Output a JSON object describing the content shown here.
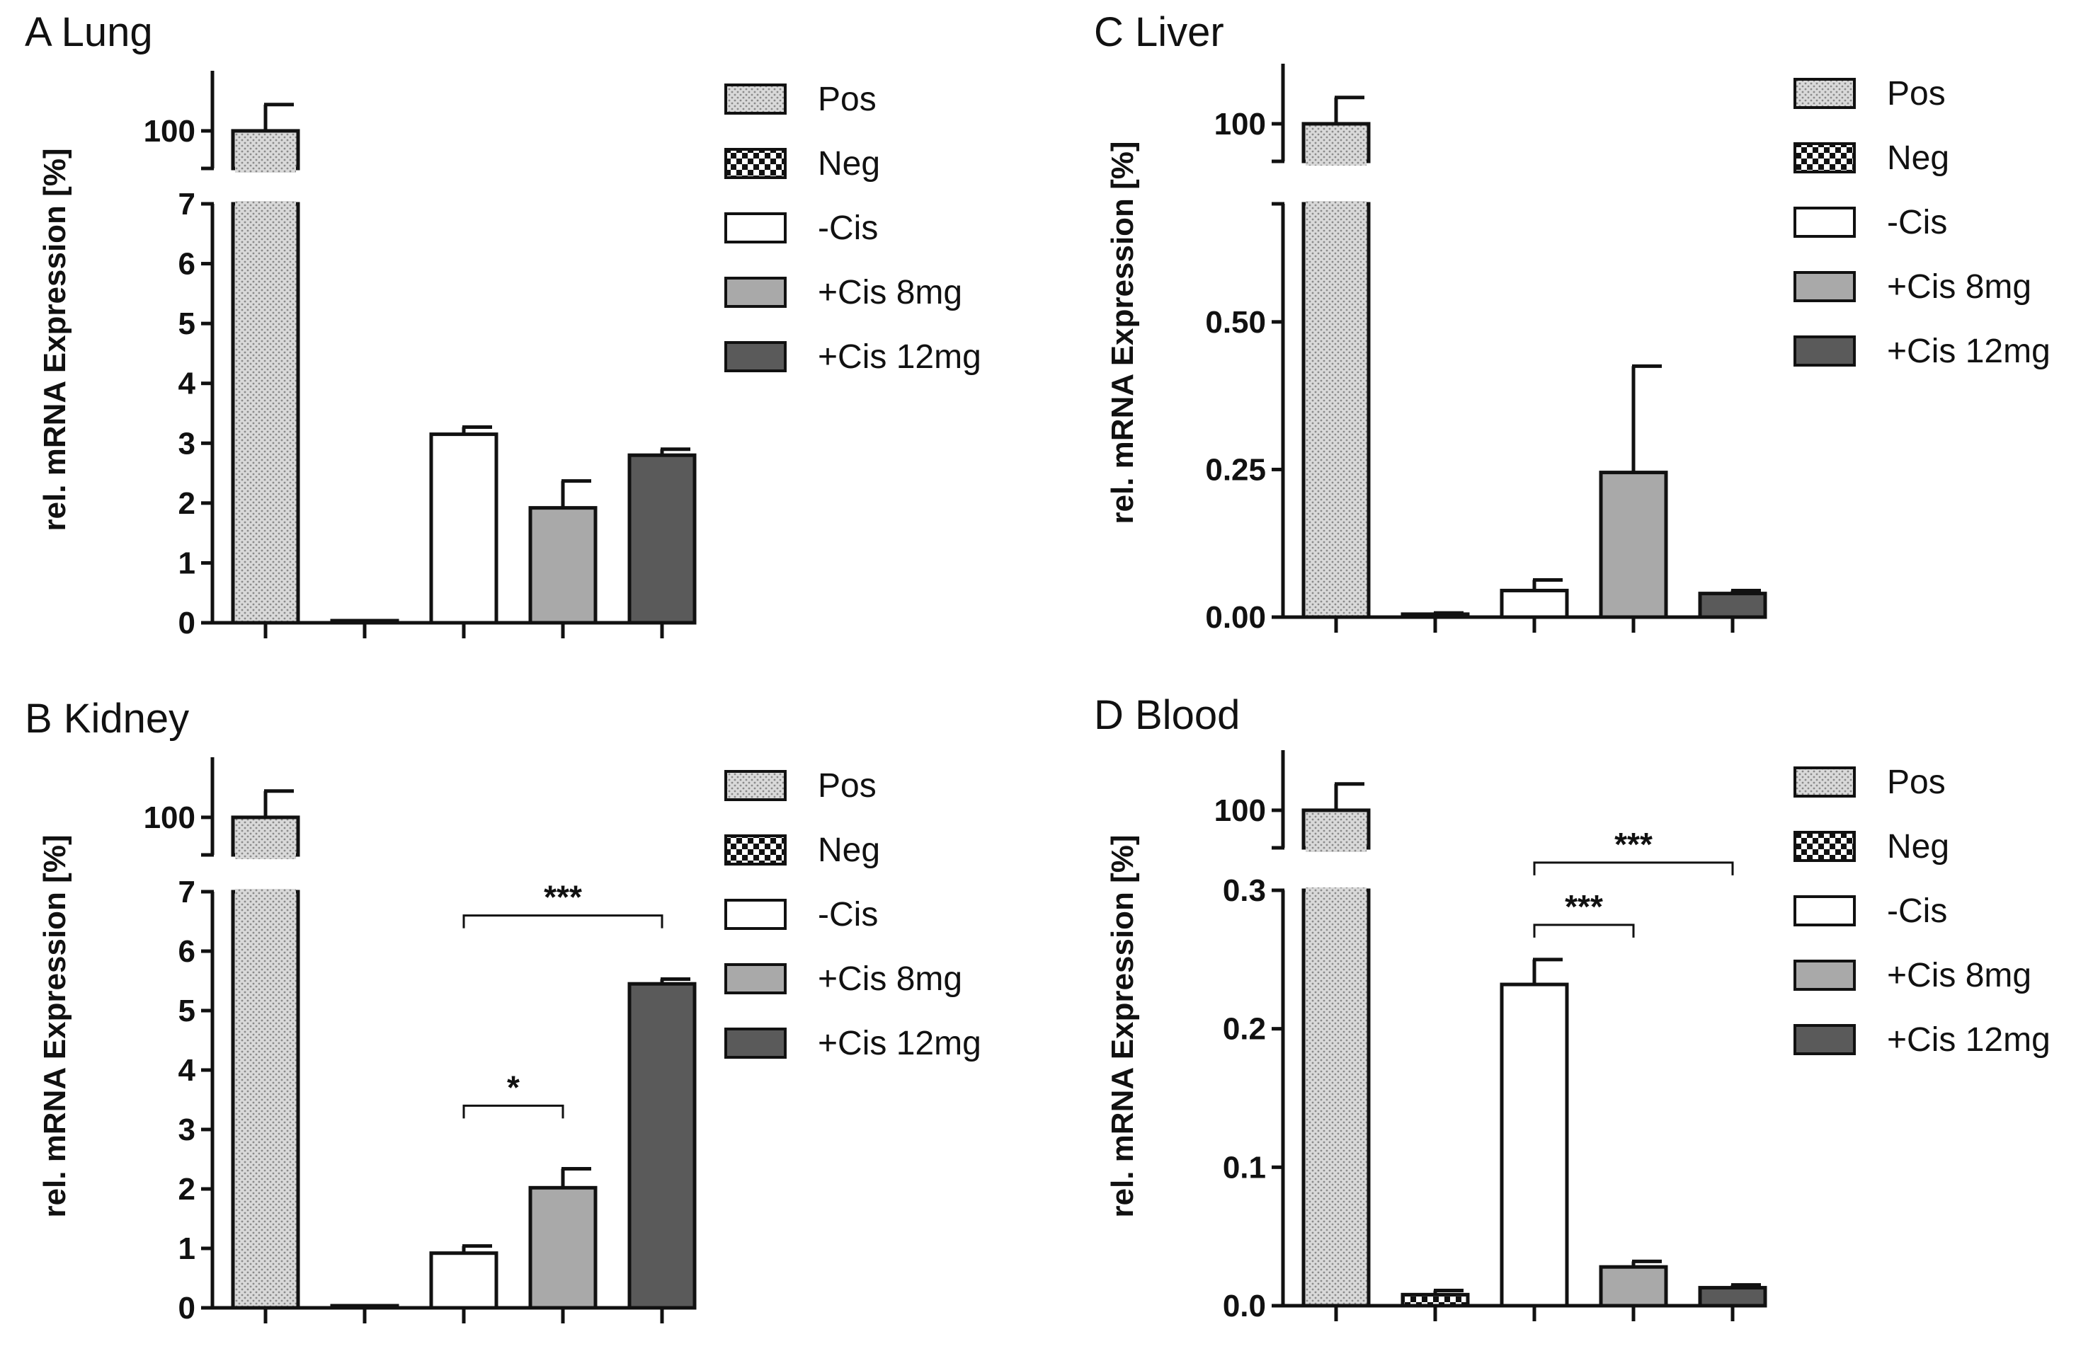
{
  "categories": [
    "Pos",
    "Neg",
    "-Cis",
    "+Cis 8mg",
    "+Cis 12mg"
  ],
  "legend": [
    {
      "label": "Pos",
      "pattern": "dots"
    },
    {
      "label": "Neg",
      "pattern": "checker"
    },
    {
      "label": "-Cis",
      "pattern": "white"
    },
    {
      "label": "+Cis 8mg",
      "pattern": "lightgray"
    },
    {
      "label": "+Cis 12mg",
      "pattern": "darkgray"
    }
  ],
  "colors": {
    "axis": "#111111",
    "light_gray": "#a9a9a9",
    "dark_gray": "#5a5a5a",
    "white": "#ffffff",
    "dots": "#c8c8c8"
  },
  "chart_data": [
    {
      "id": "A",
      "type": "bar",
      "title": "A Lung",
      "ylabel": "rel. mRNA Expression [%]",
      "categories": [
        "Pos",
        "Neg",
        "-Cis",
        "+Cis 8mg",
        "+Cis 12mg"
      ],
      "upper": {
        "ylim": [
          95,
          108
        ],
        "ticks": [
          100
        ],
        "tick_labels": [
          "100"
        ]
      },
      "lower": {
        "ylim": [
          0,
          7
        ],
        "ticks": [
          0,
          1,
          2,
          3,
          4,
          5,
          6,
          7
        ],
        "tick_labels": [
          "0",
          "1",
          "2",
          "3",
          "4",
          "5",
          "6",
          "7"
        ]
      },
      "values": [
        100,
        0.02,
        3.15,
        1.92,
        2.8
      ],
      "errors": [
        3.5,
        0.0,
        0.12,
        0.45,
        0.1
      ],
      "significance": []
    },
    {
      "id": "B",
      "type": "bar",
      "title": "B Kidney",
      "ylabel": "rel. mRNA Expression [%]",
      "categories": [
        "Pos",
        "Neg",
        "-Cis",
        "+Cis 8mg",
        "+Cis 12mg"
      ],
      "upper": {
        "ylim": [
          95,
          108
        ],
        "ticks": [
          100
        ],
        "tick_labels": [
          "100"
        ]
      },
      "lower": {
        "ylim": [
          0,
          7
        ],
        "ticks": [
          0,
          1,
          2,
          3,
          4,
          5,
          6,
          7
        ],
        "tick_labels": [
          "0",
          "1",
          "2",
          "3",
          "4",
          "5",
          "6",
          "7"
        ]
      },
      "values": [
        100,
        0.02,
        0.92,
        2.02,
        5.45
      ],
      "errors": [
        3.5,
        0.0,
        0.12,
        0.32,
        0.08
      ],
      "significance": [
        {
          "from": 2,
          "to": 3,
          "level": 3.4,
          "label": "*"
        },
        {
          "from": 2,
          "to": 4,
          "level": 6.6,
          "label": "***"
        }
      ]
    },
    {
      "id": "C",
      "type": "bar",
      "title": "C Liver",
      "ylabel": "rel. mRNA Expression [%]",
      "categories": [
        "Pos",
        "Neg",
        "-Cis",
        "+Cis 8mg",
        "+Cis 12mg"
      ],
      "upper": {
        "ylim": [
          95,
          108
        ],
        "ticks": [
          100
        ],
        "tick_labels": [
          "100"
        ]
      },
      "lower": {
        "ylim": [
          0,
          0.7
        ],
        "ticks": [
          0,
          0.25,
          0.5
        ],
        "tick_labels": [
          "0.00",
          "0.25",
          "0.50"
        ]
      },
      "values": [
        100,
        0.005,
        0.045,
        0.245,
        0.04
      ],
      "errors": [
        3.5,
        0.002,
        0.018,
        0.18,
        0.005
      ],
      "significance": []
    },
    {
      "id": "D",
      "type": "bar",
      "title": "D Blood",
      "ylabel": "rel. mRNA Expression [%]",
      "categories": [
        "Pos",
        "Neg",
        "-Cis",
        "+Cis 8mg",
        "+Cis 12mg"
      ],
      "upper": {
        "ylim": [
          95,
          108
        ],
        "ticks": [
          100
        ],
        "tick_labels": [
          "100"
        ]
      },
      "lower": {
        "ylim": [
          0,
          0.3
        ],
        "ticks": [
          0,
          0.1,
          0.2,
          0.3
        ],
        "tick_labels": [
          "0.0",
          "0.1",
          "0.2",
          "0.3"
        ]
      },
      "values": [
        100,
        0.008,
        0.232,
        0.028,
        0.013
      ],
      "errors": [
        3.5,
        0.003,
        0.018,
        0.004,
        0.002
      ],
      "significance": [
        {
          "from": 2,
          "to": 3,
          "level": 0.275,
          "label": "***"
        },
        {
          "from": 2,
          "to": 4,
          "level": 0.32,
          "label": "***"
        }
      ]
    }
  ]
}
